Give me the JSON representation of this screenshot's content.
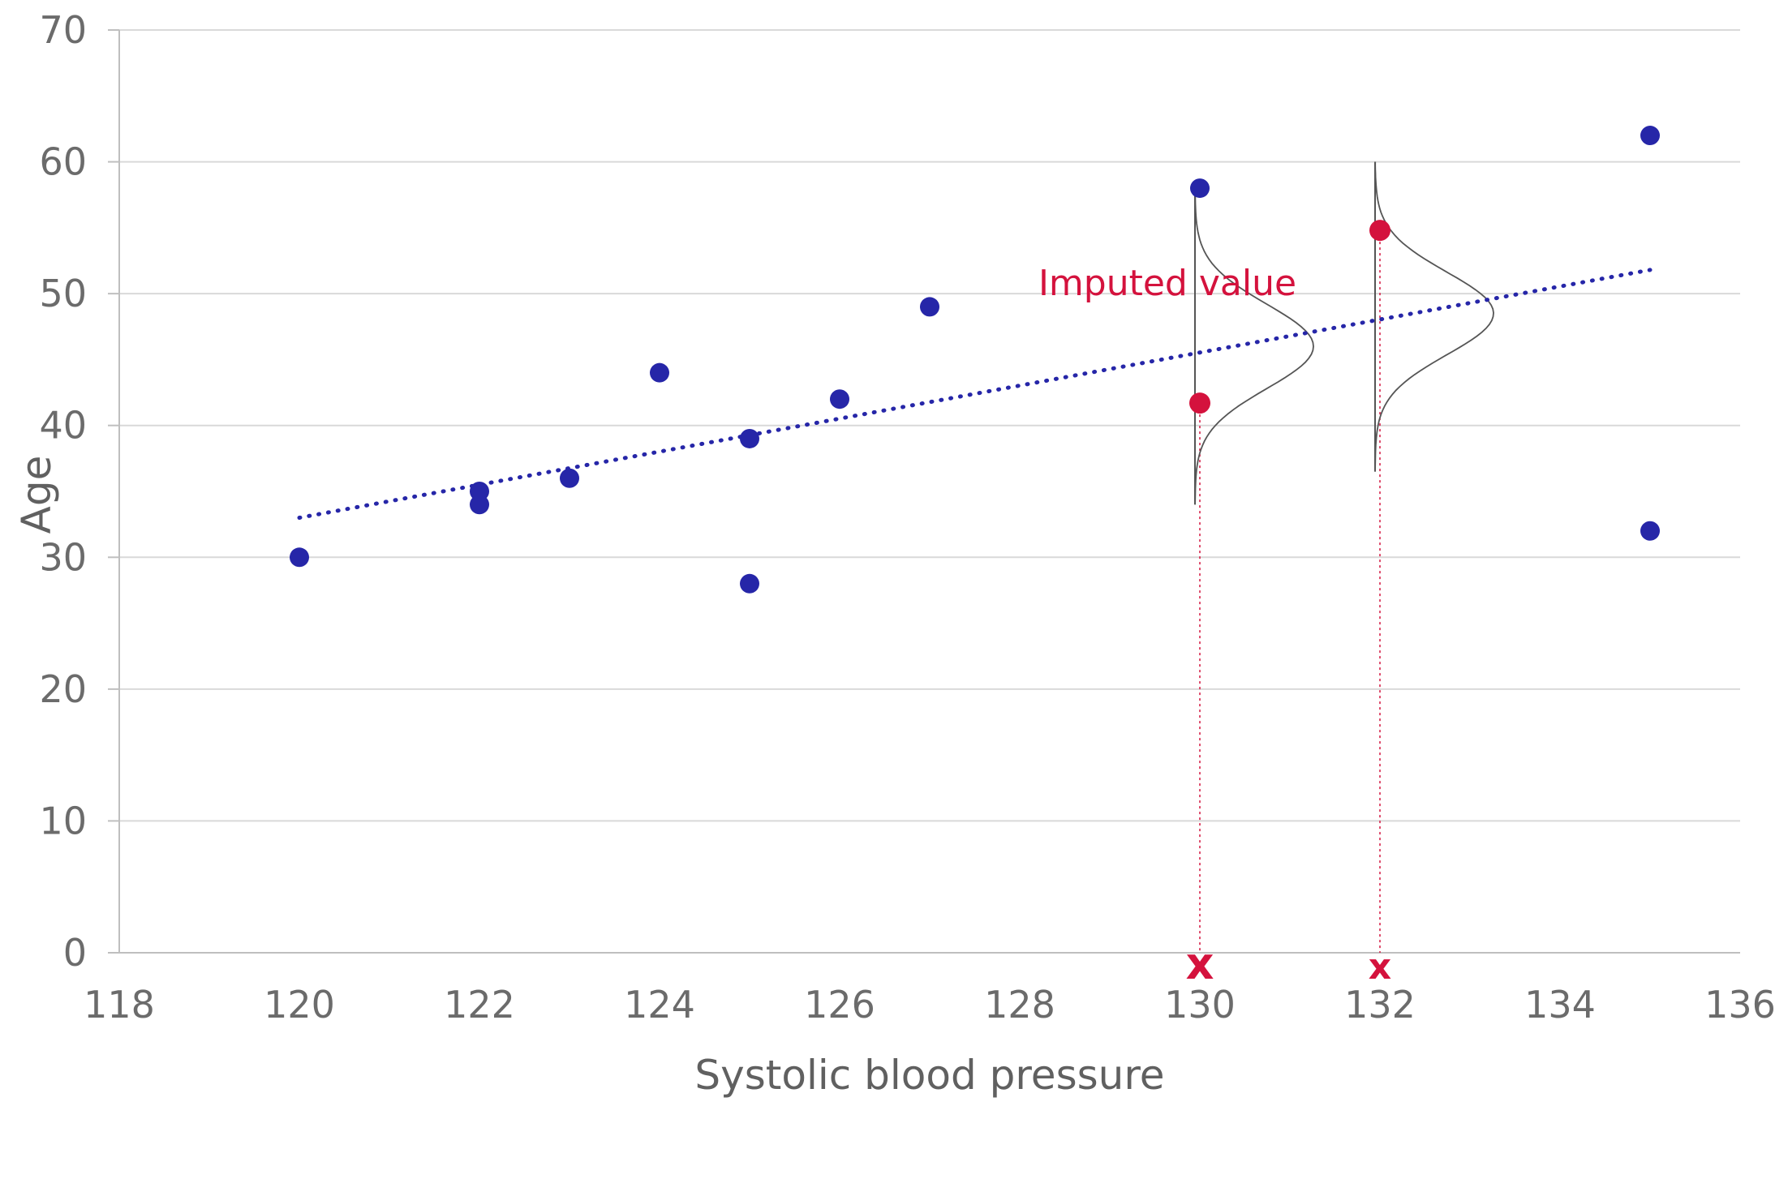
{
  "chart_data": {
    "type": "scatter",
    "title": "",
    "xlabel": "Systolic blood pressure",
    "ylabel": "Age",
    "xlim": [
      118,
      136
    ],
    "ylim": [
      0,
      70
    ],
    "xticks": [
      118,
      120,
      122,
      124,
      126,
      128,
      130,
      132,
      134,
      136
    ],
    "yticks": [
      0,
      10,
      20,
      30,
      40,
      50,
      60,
      70
    ],
    "grid": "horizontal",
    "legend": "none",
    "colors": {
      "observed": "#2626a8",
      "imputed": "#d4123d",
      "trendline": "#2626a8",
      "distribution_curve": "#555555",
      "gridline": "#d9d9d9",
      "axis": "#bfbfbf"
    },
    "observed_points": [
      {
        "x": 120,
        "y": 30
      },
      {
        "x": 122,
        "y": 35
      },
      {
        "x": 122,
        "y": 34
      },
      {
        "x": 123,
        "y": 36
      },
      {
        "x": 124,
        "y": 44
      },
      {
        "x": 125,
        "y": 39
      },
      {
        "x": 125,
        "y": 28
      },
      {
        "x": 126,
        "y": 42
      },
      {
        "x": 127,
        "y": 49
      },
      {
        "x": 130,
        "y": 58
      },
      {
        "x": 135,
        "y": 62
      },
      {
        "x": 135,
        "y": 32
      }
    ],
    "imputed_points": [
      {
        "x": 130,
        "y": 41.7
      },
      {
        "x": 132,
        "y": 54.8
      }
    ],
    "trendline": {
      "style": "dotted",
      "from": {
        "x": 120,
        "y": 33
      },
      "to": {
        "x": 135,
        "y": 51.8
      }
    },
    "distributions": [
      {
        "x": 130,
        "y_min": 34,
        "y_max": 58,
        "peak_y": 46
      },
      {
        "x": 132,
        "y_min": 36.5,
        "y_max": 60,
        "peak_y": 48.5
      }
    ],
    "missing_markers": [
      {
        "x": 130,
        "label": "x"
      },
      {
        "x": 132,
        "label": "x"
      }
    ],
    "annotations": [
      {
        "text": "Imputed value",
        "x": 130,
        "y": 50
      }
    ]
  }
}
